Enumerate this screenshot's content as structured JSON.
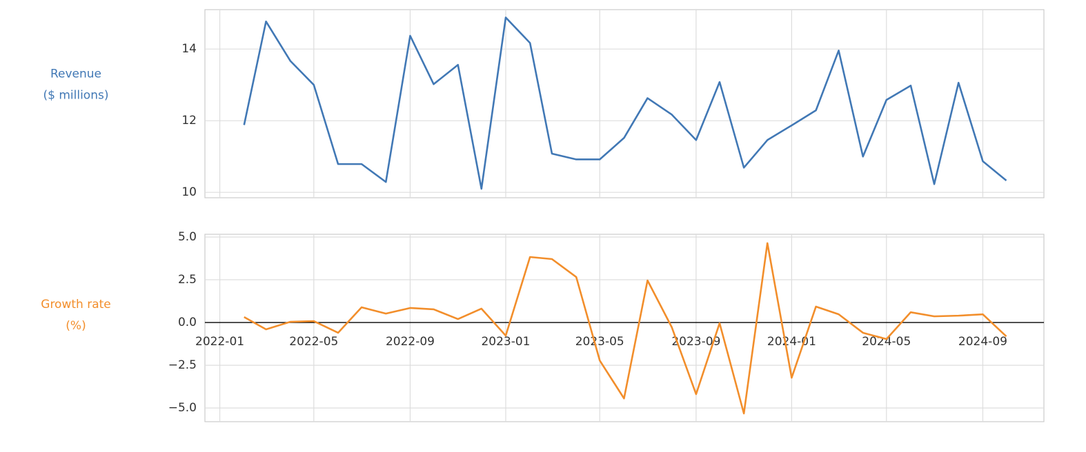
{
  "chart_data": [
    {
      "type": "line",
      "ylabel": [
        "Revenue",
        "($ millions)"
      ],
      "ylabel_color": "#4178b5",
      "grid": true,
      "show_xtick_labels": false,
      "x": [
        "2022-02",
        "2022-03",
        "2022-04",
        "2022-05",
        "2022-06",
        "2022-07",
        "2022-08",
        "2022-09",
        "2022-10",
        "2022-11",
        "2022-12",
        "2023-01",
        "2023-02",
        "2023-03",
        "2023-04",
        "2023-05",
        "2023-06",
        "2023-07",
        "2023-08",
        "2023-09",
        "2023-10",
        "2023-11",
        "2023-12",
        "2024-01",
        "2024-02",
        "2024-03",
        "2024-04",
        "2024-05",
        "2024-06",
        "2024-07",
        "2024-08",
        "2024-09",
        "2024-10"
      ],
      "series": [
        {
          "name": "Revenue",
          "color": "#4178b5",
          "values": [
            11.88,
            14.77,
            13.67,
            13.0,
            10.79,
            10.79,
            10.29,
            14.37,
            13.02,
            13.56,
            10.1,
            14.88,
            14.17,
            11.08,
            10.92,
            10.92,
            11.52,
            12.63,
            12.17,
            11.46,
            13.08,
            10.69,
            11.46,
            11.87,
            12.29,
            13.96,
            11.0,
            12.58,
            12.98,
            10.23,
            13.06,
            10.87,
            10.33
          ]
        }
      ],
      "xlim": [
        "2021-12-13",
        "2024-11-18"
      ],
      "xticks": [
        "2022-01",
        "2022-05",
        "2022-09",
        "2023-01",
        "2023-05",
        "2023-09",
        "2024-01",
        "2024-05",
        "2024-09"
      ],
      "ylim": [
        9.85,
        15.1
      ],
      "yticks": [
        10,
        12,
        14
      ]
    },
    {
      "type": "line",
      "ylabel": [
        "Growth rate",
        "(%)"
      ],
      "ylabel_color": "#f28e2b",
      "grid": true,
      "show_xtick_labels": true,
      "zero_line": true,
      "x": [
        "2022-02",
        "2022-03",
        "2022-04",
        "2022-05",
        "2022-06",
        "2022-07",
        "2022-08",
        "2022-09",
        "2022-10",
        "2022-11",
        "2022-12",
        "2023-01",
        "2023-02",
        "2023-03",
        "2023-04",
        "2023-05",
        "2023-06",
        "2023-07",
        "2023-08",
        "2023-09",
        "2023-10",
        "2023-11",
        "2023-12",
        "2024-01",
        "2024-02",
        "2024-03",
        "2024-04",
        "2024-05",
        "2024-06",
        "2024-07",
        "2024-08",
        "2024-09",
        "2024-10"
      ],
      "series": [
        {
          "name": "Growth rate",
          "color": "#f28e2b",
          "values": [
            0.32,
            -0.4,
            0.04,
            0.08,
            -0.6,
            0.89,
            0.52,
            0.85,
            0.77,
            0.2,
            0.81,
            -0.77,
            3.83,
            3.71,
            2.66,
            -2.22,
            -4.44,
            2.46,
            -0.28,
            -4.19,
            -0.04,
            -5.32,
            4.64,
            -3.23,
            0.93,
            0.48,
            -0.6,
            -0.97,
            0.6,
            0.36,
            0.4,
            0.48,
            -0.81
          ]
        }
      ],
      "xlim": [
        "2021-12-13",
        "2024-11-18"
      ],
      "xticks": [
        "2022-01",
        "2022-05",
        "2022-09",
        "2023-01",
        "2023-05",
        "2023-09",
        "2024-01",
        "2024-05",
        "2024-09"
      ],
      "ylim": [
        -5.8,
        5.16
      ],
      "yticks": [
        {
          "value": -5,
          "label": "−5.0"
        },
        {
          "value": -2.5,
          "label": "−2.5"
        },
        {
          "value": 0,
          "label": "0.0"
        },
        {
          "value": 2.5,
          "label": "2.5"
        },
        {
          "value": 5,
          "label": "5.0"
        }
      ]
    }
  ]
}
